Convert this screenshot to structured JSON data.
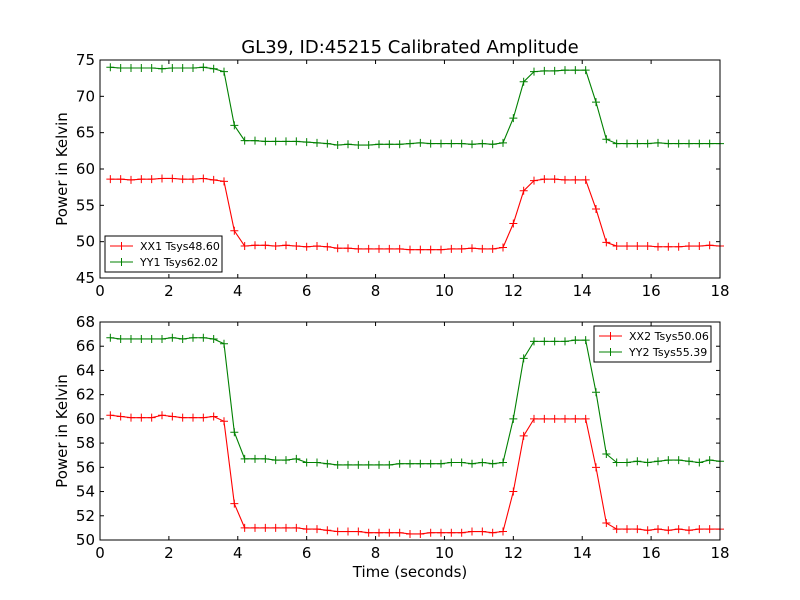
{
  "title": "GL39, ID:45215 Calibrated Amplitude",
  "colors": {
    "red": "#ff0000",
    "green": "#008000"
  },
  "chart_data": [
    {
      "type": "line",
      "xlabel": "",
      "ylabel": "Power in Kelvin",
      "xlim": [
        0,
        18
      ],
      "ylim": [
        45,
        75
      ],
      "xticks": [
        0,
        2,
        4,
        6,
        8,
        10,
        12,
        14,
        16,
        18
      ],
      "yticks": [
        45,
        50,
        55,
        60,
        65,
        70,
        75
      ],
      "grid": false,
      "legend_position": "lower-left",
      "x": [
        0.3,
        0.6,
        0.9,
        1.2,
        1.5,
        1.8,
        2.1,
        2.4,
        2.7,
        3.0,
        3.3,
        3.6,
        3.9,
        4.2,
        4.5,
        4.8,
        5.1,
        5.4,
        5.7,
        6.0,
        6.3,
        6.6,
        6.9,
        7.2,
        7.5,
        7.8,
        8.1,
        8.4,
        8.7,
        9.0,
        9.3,
        9.6,
        9.9,
        10.2,
        10.5,
        10.8,
        11.1,
        11.4,
        11.7,
        12.0,
        12.3,
        12.6,
        12.9,
        13.2,
        13.5,
        13.8,
        14.1,
        14.4,
        14.7,
        15.0,
        15.3,
        15.6,
        15.9,
        16.2,
        16.5,
        16.8,
        17.1,
        17.4,
        17.7,
        18.0
      ],
      "series": [
        {
          "name": "XX1 Tsys48.60",
          "color": "#ff0000",
          "values": [
            58.6,
            58.6,
            58.5,
            58.6,
            58.6,
            58.7,
            58.7,
            58.6,
            58.6,
            58.7,
            58.5,
            58.3,
            51.5,
            49.4,
            49.5,
            49.5,
            49.4,
            49.5,
            49.4,
            49.3,
            49.4,
            49.3,
            49.1,
            49.1,
            49.0,
            49.0,
            49.0,
            49.0,
            49.0,
            48.9,
            48.9,
            48.9,
            48.9,
            49.0,
            49.0,
            49.1,
            49.0,
            49.0,
            49.2,
            52.5,
            57.0,
            58.4,
            58.6,
            58.6,
            58.5,
            58.5,
            58.5,
            54.5,
            49.9,
            49.4,
            49.4,
            49.4,
            49.4,
            49.3,
            49.3,
            49.3,
            49.4,
            49.4,
            49.5,
            49.4
          ]
        },
        {
          "name": "YY1 Tsys62.02",
          "color": "#008000",
          "values": [
            74.0,
            73.9,
            73.9,
            73.9,
            73.9,
            73.8,
            73.9,
            73.9,
            73.9,
            74.0,
            73.8,
            73.4,
            66.0,
            63.9,
            63.9,
            63.8,
            63.8,
            63.8,
            63.8,
            63.7,
            63.6,
            63.5,
            63.3,
            63.4,
            63.3,
            63.3,
            63.4,
            63.4,
            63.4,
            63.5,
            63.6,
            63.5,
            63.5,
            63.5,
            63.5,
            63.4,
            63.5,
            63.4,
            63.6,
            67.0,
            72.0,
            73.4,
            73.5,
            73.5,
            73.6,
            73.6,
            73.6,
            69.2,
            64.1,
            63.5,
            63.5,
            63.5,
            63.5,
            63.6,
            63.5,
            63.5,
            63.5,
            63.5,
            63.5,
            63.5
          ]
        }
      ]
    },
    {
      "type": "line",
      "xlabel": "Time (seconds)",
      "ylabel": "Power in Kelvin",
      "xlim": [
        0,
        18
      ],
      "ylim": [
        50,
        68
      ],
      "xticks": [
        0,
        2,
        4,
        6,
        8,
        10,
        12,
        14,
        16,
        18
      ],
      "yticks": [
        50,
        52,
        54,
        56,
        58,
        60,
        62,
        64,
        66,
        68
      ],
      "grid": false,
      "legend_position": "top-right",
      "x": [
        0.3,
        0.6,
        0.9,
        1.2,
        1.5,
        1.8,
        2.1,
        2.4,
        2.7,
        3.0,
        3.3,
        3.6,
        3.9,
        4.2,
        4.5,
        4.8,
        5.1,
        5.4,
        5.7,
        6.0,
        6.3,
        6.6,
        6.9,
        7.2,
        7.5,
        7.8,
        8.1,
        8.4,
        8.7,
        9.0,
        9.3,
        9.6,
        9.9,
        10.2,
        10.5,
        10.8,
        11.1,
        11.4,
        11.7,
        12.0,
        12.3,
        12.6,
        12.9,
        13.2,
        13.5,
        13.8,
        14.1,
        14.4,
        14.7,
        15.0,
        15.3,
        15.6,
        15.9,
        16.2,
        16.5,
        16.8,
        17.1,
        17.4,
        17.7,
        18.0
      ],
      "series": [
        {
          "name": "XX2 Tsys50.06",
          "color": "#ff0000",
          "values": [
            60.3,
            60.2,
            60.1,
            60.1,
            60.1,
            60.3,
            60.2,
            60.1,
            60.1,
            60.1,
            60.2,
            59.8,
            53.0,
            51.0,
            51.0,
            51.0,
            51.0,
            51.0,
            51.0,
            50.9,
            50.9,
            50.8,
            50.7,
            50.7,
            50.7,
            50.6,
            50.6,
            50.6,
            50.6,
            50.5,
            50.5,
            50.6,
            50.6,
            50.6,
            50.6,
            50.7,
            50.7,
            50.6,
            50.7,
            54.0,
            58.6,
            60.0,
            60.0,
            60.0,
            60.0,
            60.0,
            60.0,
            56.0,
            51.4,
            50.9,
            50.9,
            50.9,
            50.8,
            50.9,
            50.8,
            50.9,
            50.8,
            50.9,
            50.9,
            50.9
          ]
        },
        {
          "name": "YY2 Tsys55.39",
          "color": "#008000",
          "values": [
            66.7,
            66.6,
            66.6,
            66.6,
            66.6,
            66.6,
            66.7,
            66.6,
            66.7,
            66.7,
            66.6,
            66.2,
            58.9,
            56.7,
            56.7,
            56.7,
            56.6,
            56.6,
            56.7,
            56.4,
            56.4,
            56.3,
            56.2,
            56.2,
            56.2,
            56.2,
            56.2,
            56.2,
            56.3,
            56.3,
            56.3,
            56.3,
            56.3,
            56.4,
            56.4,
            56.3,
            56.4,
            56.3,
            56.4,
            60.0,
            65.0,
            66.4,
            66.4,
            66.4,
            66.4,
            66.5,
            66.5,
            62.2,
            57.1,
            56.4,
            56.4,
            56.5,
            56.4,
            56.5,
            56.6,
            56.6,
            56.5,
            56.4,
            56.6,
            56.5
          ]
        }
      ]
    }
  ]
}
